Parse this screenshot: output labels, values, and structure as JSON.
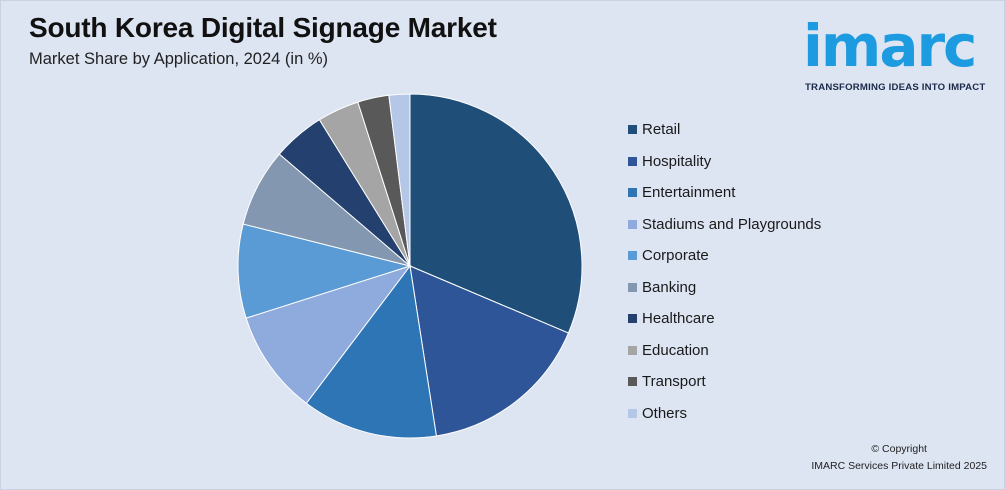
{
  "header": {
    "title": "South Korea Digital Signage Market",
    "subtitle": "Market Share by Application, 2024 (in %)"
  },
  "logo": {
    "wordmark": "imarc",
    "tagline": "TRANSFORMING IDEAS INTO IMPACT",
    "color": "#1d9be0"
  },
  "chart_data": {
    "type": "pie",
    "title": "South Korea Digital Signage Market",
    "subtitle": "Market Share by Application, 2024 (in %)",
    "legend_position": "right",
    "categories": [
      "Retail",
      "Hospitality",
      "Entertainment",
      "Stadiums and Playgrounds",
      "Corporate",
      "Banking",
      "Healthcare",
      "Education",
      "Transport",
      "Others"
    ],
    "values": [
      32,
      16.5,
      13,
      10,
      9,
      7.5,
      5,
      4,
      3,
      2
    ],
    "colors": [
      "#1f4e79",
      "#2e5597",
      "#2e75b6",
      "#8faadc",
      "#5b9bd5",
      "#8497b0",
      "#24406e",
      "#a5a5a5",
      "#595959",
      "#b4c7e7"
    ]
  },
  "footer": {
    "copyright_line1": "© Copyright",
    "copyright_line2": "IMARC Services Private Limited 2025"
  }
}
